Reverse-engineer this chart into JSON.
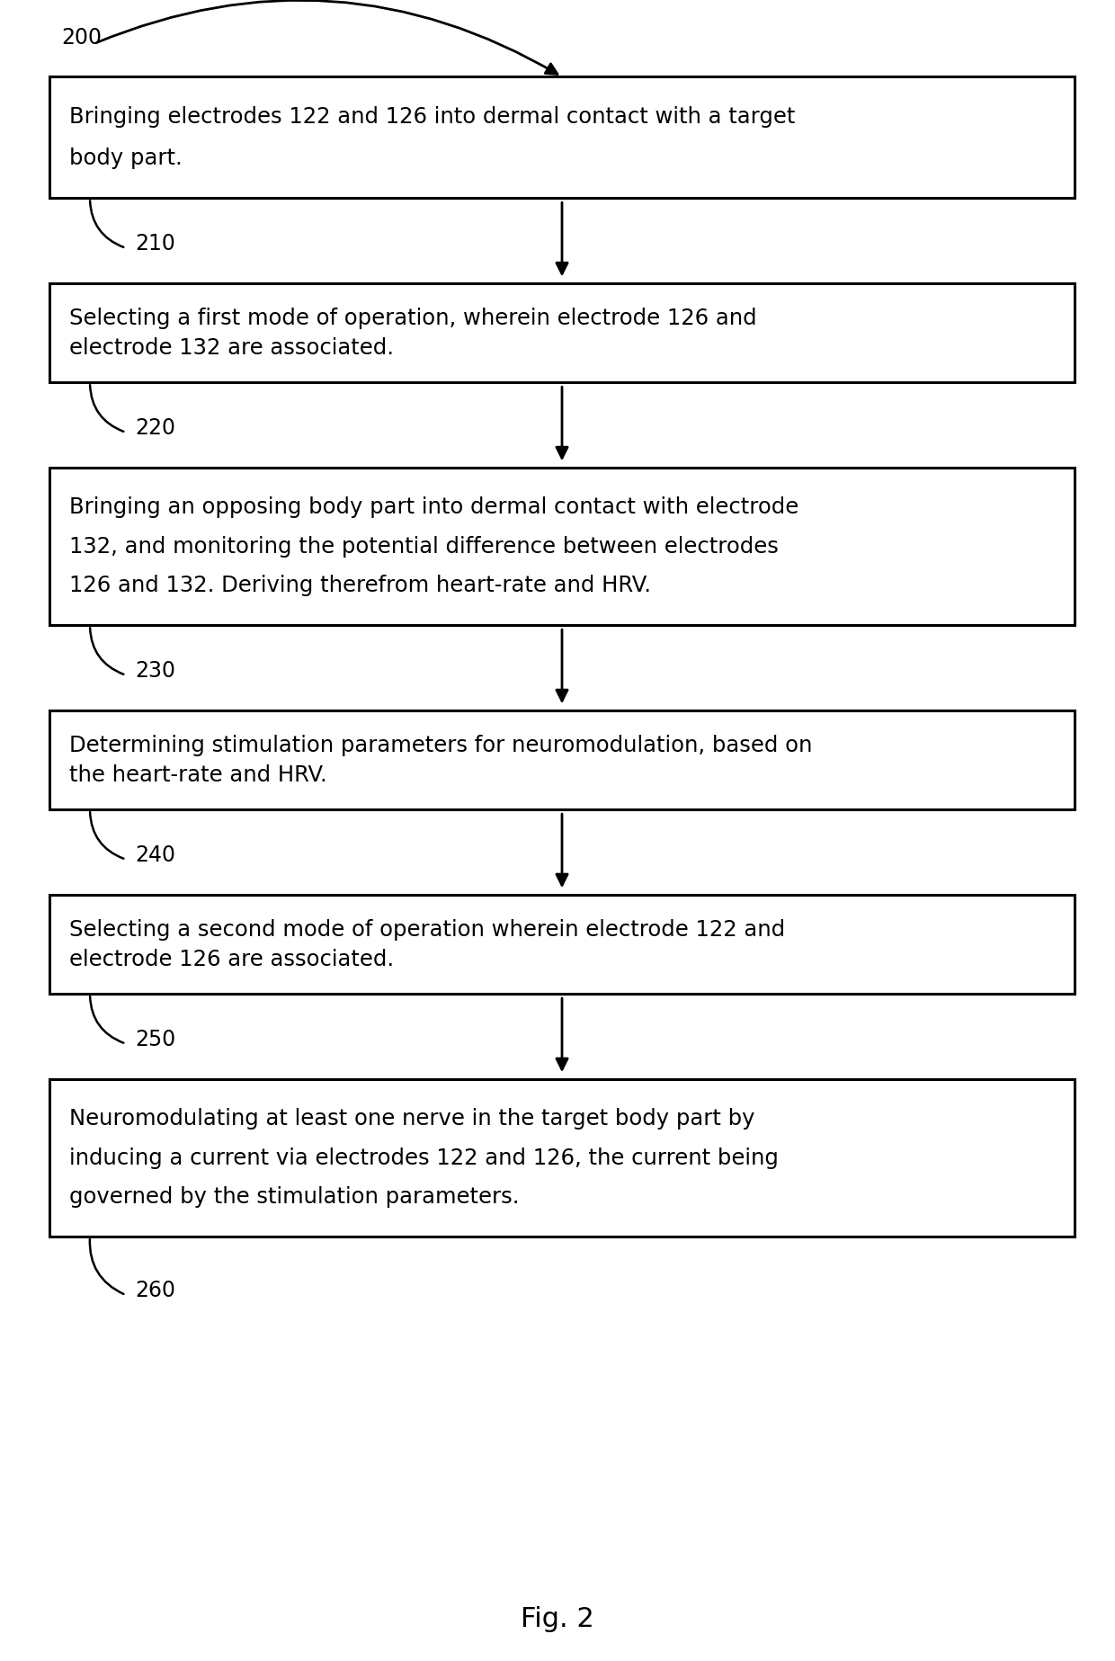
{
  "title": "Fig. 2",
  "figure_label": "200",
  "boxes": [
    {
      "id": 0,
      "lines": [
        "Bringing electrodes 122 and 126 into dermal contact with a target",
        "body part."
      ],
      "label": "210",
      "nlines": 2
    },
    {
      "id": 1,
      "lines": [
        "Selecting a first mode of operation, wherein electrode 126 and",
        "electrode 132 are associated."
      ],
      "label": "220",
      "nlines": 2
    },
    {
      "id": 2,
      "lines": [
        "Bringing an opposing body part into dermal contact with electrode",
        "132, and monitoring the potential difference between electrodes",
        "126 and 132. Deriving therefrom heart-rate and HRV."
      ],
      "label": "230",
      "nlines": 3
    },
    {
      "id": 3,
      "lines": [
        "Determining stimulation parameters for neuromodulation, based on",
        "the heart-rate and HRV."
      ],
      "label": "240",
      "nlines": 2
    },
    {
      "id": 4,
      "lines": [
        "Selecting a second mode of operation wherein electrode 122 and",
        "electrode 126 are associated."
      ],
      "label": "250",
      "nlines": 2
    },
    {
      "id": 5,
      "lines": [
        "Neuromodulating at least one nerve in the target body part by",
        "inducing a current via electrodes 122 and 126, the current being",
        "governed by the stimulation parameters."
      ],
      "label": "260",
      "nlines": 3
    }
  ],
  "bg_color": "#ffffff",
  "box_edge_color": "#000000",
  "text_color": "#000000",
  "arrow_color": "#000000",
  "font_size": 17.5,
  "label_font_size": 17,
  "title_font_size": 22
}
